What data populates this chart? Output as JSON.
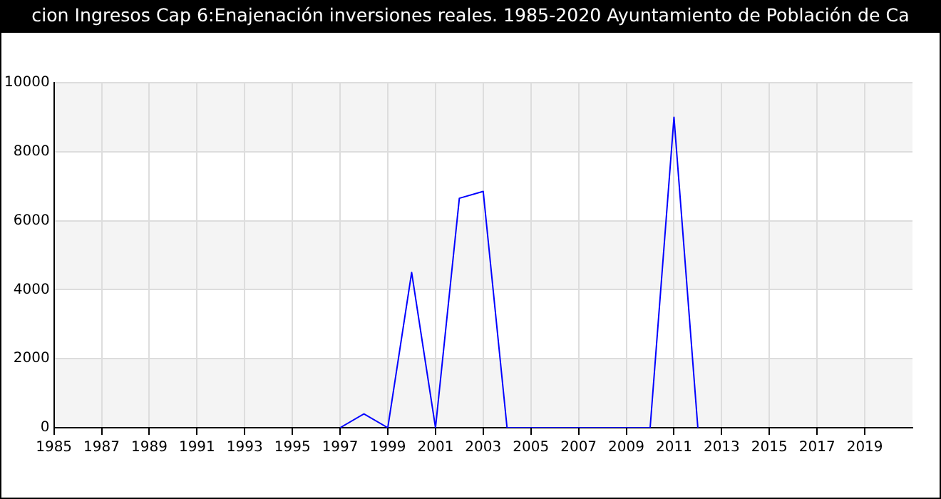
{
  "chart_data": {
    "type": "line",
    "title": "cion Ingresos Cap 6:Enajenación inversiones reales. 1985-2020 Ayuntamiento de Población de Ca",
    "x": [
      1997,
      1998,
      1999,
      2000,
      2001,
      2002,
      2003,
      2004,
      2005,
      2006,
      2007,
      2008,
      2009,
      2010,
      2011,
      2012
    ],
    "series": [
      {
        "color": "#0000ff",
        "values": [
          0,
          400,
          0,
          4500,
          0,
          6650,
          6850,
          0,
          0,
          0,
          0,
          0,
          0,
          0,
          9000,
          0
        ]
      }
    ],
    "xlim": [
      1985,
      2021
    ],
    "xticks": [
      1985,
      1987,
      1989,
      1991,
      1993,
      1995,
      1997,
      1999,
      2001,
      2003,
      2005,
      2007,
      2009,
      2011,
      2013,
      2015,
      2017,
      2019
    ],
    "ylim": [
      0,
      10000
    ],
    "yticks": [
      0,
      2000,
      4000,
      6000,
      8000,
      10000
    ],
    "grid": true,
    "legend": false,
    "marker": "none",
    "line_style": "solid"
  }
}
